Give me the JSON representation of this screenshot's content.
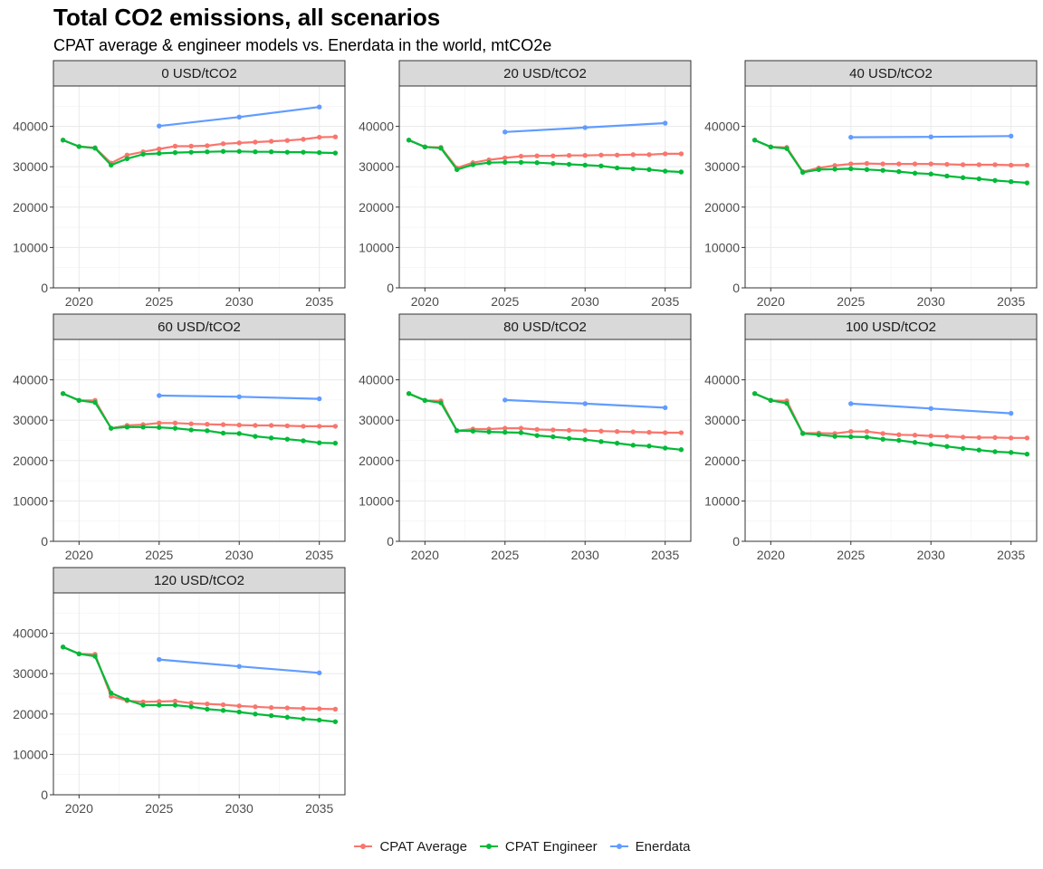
{
  "title": "Total CO2 emissions, all scenarios",
  "subtitle": "CPAT average & engineer models vs. Enerdata in the world, mtCO2e",
  "colors": {
    "CPAT Average": "#F8766D",
    "CPAT Engineer": "#00BA38",
    "Enerdata": "#619CFF"
  },
  "legend": [
    {
      "label": "CPAT Average",
      "color": "#F8766D"
    },
    {
      "label": "CPAT Engineer",
      "color": "#00BA38"
    },
    {
      "label": "Enerdata",
      "color": "#619CFF"
    }
  ],
  "chart_data": {
    "type": "line",
    "facet_by": "carbon price",
    "x_ticks": [
      2020,
      2025,
      2030,
      2035
    ],
    "y_ticks": [
      0,
      10000,
      20000,
      30000,
      40000
    ],
    "xlim": [
      2018.4,
      2036.6
    ],
    "ylim": [
      0,
      50000
    ],
    "grid": true,
    "legend_position": "bottom",
    "panels": [
      {
        "title": "0 USD/tCO2",
        "series": [
          {
            "name": "CPAT Average",
            "x": [
              2019,
              2020,
              2021,
              2022,
              2023,
              2024,
              2025,
              2026,
              2027,
              2028,
              2029,
              2030,
              2031,
              2032,
              2033,
              2034,
              2035,
              2036
            ],
            "values": [
              36600,
              35000,
              34700,
              30900,
              32900,
              33700,
              34400,
              35100,
              35100,
              35200,
              35700,
              35900,
              36100,
              36300,
              36500,
              36800,
              37300,
              37400
            ]
          },
          {
            "name": "CPAT Engineer",
            "x": [
              2019,
              2020,
              2021,
              2022,
              2023,
              2024,
              2025,
              2026,
              2027,
              2028,
              2029,
              2030,
              2031,
              2032,
              2033,
              2034,
              2035,
              2036
            ],
            "values": [
              36600,
              35000,
              34600,
              30400,
              32000,
              33100,
              33300,
              33500,
              33600,
              33700,
              33800,
              33800,
              33700,
              33700,
              33600,
              33600,
              33500,
              33400
            ]
          },
          {
            "name": "Enerdata",
            "x": [
              2025,
              2030,
              2035
            ],
            "values": [
              40100,
              42300,
              44800
            ]
          }
        ]
      },
      {
        "title": "20 USD/tCO2",
        "series": [
          {
            "name": "CPAT Average",
            "x": [
              2019,
              2020,
              2021,
              2022,
              2023,
              2024,
              2025,
              2026,
              2027,
              2028,
              2029,
              2030,
              2031,
              2032,
              2033,
              2034,
              2035,
              2036
            ],
            "values": [
              36600,
              34900,
              34800,
              29700,
              31000,
              31700,
              32200,
              32600,
              32700,
              32700,
              32800,
              32800,
              32900,
              32900,
              33000,
              33000,
              33200,
              33200
            ]
          },
          {
            "name": "CPAT Engineer",
            "x": [
              2019,
              2020,
              2021,
              2022,
              2023,
              2024,
              2025,
              2026,
              2027,
              2028,
              2029,
              2030,
              2031,
              2032,
              2033,
              2034,
              2035,
              2036
            ],
            "values": [
              36600,
              34900,
              34600,
              29300,
              30500,
              31000,
              31100,
              31100,
              31000,
              30800,
              30600,
              30400,
              30200,
              29700,
              29500,
              29300,
              28900,
              28700
            ]
          },
          {
            "name": "Enerdata",
            "x": [
              2025,
              2030,
              2035
            ],
            "values": [
              38600,
              39700,
              40800
            ]
          }
        ]
      },
      {
        "title": "40 USD/tCO2",
        "series": [
          {
            "name": "CPAT Average",
            "x": [
              2019,
              2020,
              2021,
              2022,
              2023,
              2024,
              2025,
              2026,
              2027,
              2028,
              2029,
              2030,
              2031,
              2032,
              2033,
              2034,
              2035,
              2036
            ],
            "values": [
              36600,
              34900,
              34800,
              28800,
              29700,
              30300,
              30700,
              30800,
              30700,
              30700,
              30700,
              30700,
              30600,
              30500,
              30500,
              30500,
              30400,
              30400
            ]
          },
          {
            "name": "CPAT Engineer",
            "x": [
              2019,
              2020,
              2021,
              2022,
              2023,
              2024,
              2025,
              2026,
              2027,
              2028,
              2029,
              2030,
              2031,
              2032,
              2033,
              2034,
              2035,
              2036
            ],
            "values": [
              36600,
              34900,
              34500,
              28600,
              29300,
              29400,
              29500,
              29300,
              29100,
              28800,
              28400,
              28200,
              27700,
              27300,
              27000,
              26600,
              26300,
              26000
            ]
          },
          {
            "name": "Enerdata",
            "x": [
              2025,
              2030,
              2035
            ],
            "values": [
              37300,
              37400,
              37600
            ]
          }
        ]
      },
      {
        "title": "60 USD/tCO2",
        "series": [
          {
            "name": "CPAT Average",
            "x": [
              2019,
              2020,
              2021,
              2022,
              2023,
              2024,
              2025,
              2026,
              2027,
              2028,
              2029,
              2030,
              2031,
              2032,
              2033,
              2034,
              2035,
              2036
            ],
            "values": [
              36600,
              34900,
              34900,
              28000,
              28700,
              28900,
              29300,
              29300,
              29100,
              29000,
              28900,
              28800,
              28700,
              28700,
              28600,
              28500,
              28500,
              28500
            ]
          },
          {
            "name": "CPAT Engineer",
            "x": [
              2019,
              2020,
              2021,
              2022,
              2023,
              2024,
              2025,
              2026,
              2027,
              2028,
              2029,
              2030,
              2031,
              2032,
              2033,
              2034,
              2035,
              2036
            ],
            "values": [
              36600,
              34900,
              34400,
              28000,
              28300,
              28300,
              28200,
              28000,
              27600,
              27400,
              26800,
              26700,
              26000,
              25600,
              25300,
              24900,
              24400,
              24300
            ]
          },
          {
            "name": "Enerdata",
            "x": [
              2025,
              2030,
              2035
            ],
            "values": [
              36100,
              35800,
              35300
            ]
          }
        ]
      },
      {
        "title": "80 USD/tCO2",
        "series": [
          {
            "name": "CPAT Average",
            "x": [
              2019,
              2020,
              2021,
              2022,
              2023,
              2024,
              2025,
              2026,
              2027,
              2028,
              2029,
              2030,
              2031,
              2032,
              2033,
              2034,
              2035,
              2036
            ],
            "values": [
              36600,
              34900,
              34800,
              27400,
              27800,
              27800,
              28000,
              28000,
              27700,
              27600,
              27500,
              27400,
              27300,
              27200,
              27100,
              27000,
              26900,
              26900
            ]
          },
          {
            "name": "CPAT Engineer",
            "x": [
              2019,
              2020,
              2021,
              2022,
              2023,
              2024,
              2025,
              2026,
              2027,
              2028,
              2029,
              2030,
              2031,
              2032,
              2033,
              2034,
              2035,
              2036
            ],
            "values": [
              36600,
              34900,
              34300,
              27400,
              27300,
              27100,
              27000,
              26900,
              26200,
              25900,
              25500,
              25200,
              24700,
              24300,
              23800,
              23600,
              23100,
              22700
            ]
          },
          {
            "name": "Enerdata",
            "x": [
              2025,
              2030,
              2035
            ],
            "values": [
              35000,
              34100,
              33100
            ]
          }
        ]
      },
      {
        "title": "100 USD/tCO2",
        "series": [
          {
            "name": "CPAT Average",
            "x": [
              2019,
              2020,
              2021,
              2022,
              2023,
              2024,
              2025,
              2026,
              2027,
              2028,
              2029,
              2030,
              2031,
              2032,
              2033,
              2034,
              2035,
              2036
            ],
            "values": [
              36600,
              34900,
              34800,
              26800,
              26800,
              26700,
              27200,
              27200,
              26700,
              26400,
              26300,
              26100,
              26000,
              25800,
              25700,
              25700,
              25600,
              25600
            ]
          },
          {
            "name": "CPAT Engineer",
            "x": [
              2019,
              2020,
              2021,
              2022,
              2023,
              2024,
              2025,
              2026,
              2027,
              2028,
              2029,
              2030,
              2031,
              2032,
              2033,
              2034,
              2035,
              2036
            ],
            "values": [
              36600,
              34900,
              34200,
              26700,
              26400,
              26000,
              25900,
              25800,
              25300,
              25000,
              24500,
              24000,
              23500,
              23000,
              22600,
              22200,
              22000,
              21600
            ]
          },
          {
            "name": "Enerdata",
            "x": [
              2025,
              2030,
              2035
            ],
            "values": [
              34100,
              32900,
              31700
            ]
          }
        ]
      },
      {
        "title": "120 USD/tCO2",
        "series": [
          {
            "name": "CPAT Average",
            "x": [
              2019,
              2020,
              2021,
              2022,
              2023,
              2024,
              2025,
              2026,
              2027,
              2028,
              2029,
              2030,
              2031,
              2032,
              2033,
              2034,
              2035,
              2036
            ],
            "values": [
              36600,
              34900,
              34800,
              24400,
              23300,
              23000,
              23100,
              23200,
              22700,
              22500,
              22300,
              22000,
              21800,
              21600,
              21500,
              21400,
              21300,
              21200
            ]
          },
          {
            "name": "CPAT Engineer",
            "x": [
              2019,
              2020,
              2021,
              2022,
              2023,
              2024,
              2025,
              2026,
              2027,
              2028,
              2029,
              2030,
              2031,
              2032,
              2033,
              2034,
              2035,
              2036
            ],
            "values": [
              36600,
              34900,
              34300,
              25200,
              23500,
              22200,
              22200,
              22200,
              21800,
              21200,
              20900,
              20500,
              20000,
              19600,
              19200,
              18800,
              18500,
              18100
            ]
          },
          {
            "name": "Enerdata",
            "x": [
              2025,
              2030,
              2035
            ],
            "values": [
              33500,
              31800,
              30200
            ]
          }
        ]
      }
    ]
  }
}
